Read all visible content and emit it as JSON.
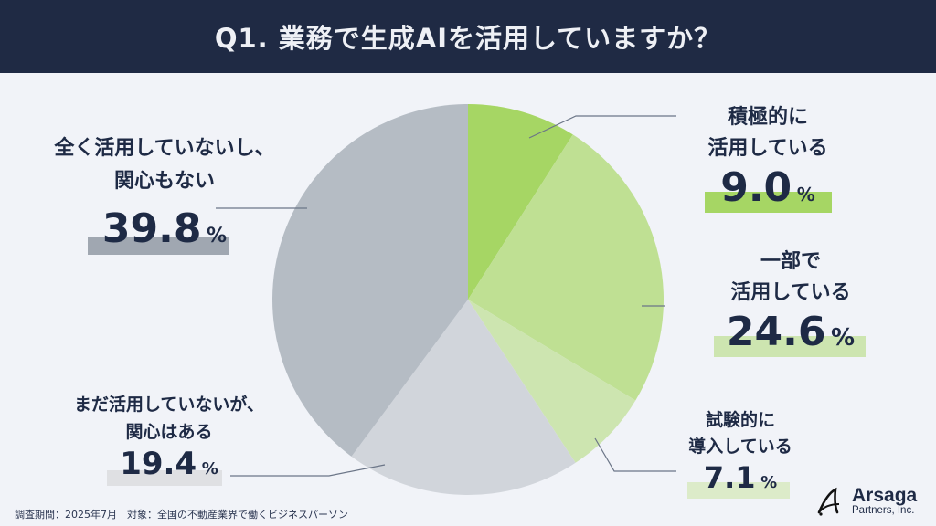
{
  "header": {
    "title": "Q1.  業務で生成AIを活用していますか？"
  },
  "chart_data": {
    "type": "pie",
    "title": "Q1. 業務で生成AIを活用していますか？",
    "start_angle": "12 o'clock, clockwise",
    "slices": [
      {
        "label": "積極的に活用している",
        "value": 9.0,
        "color": "#a6d664"
      },
      {
        "label": "一部で活用している",
        "value": 24.6,
        "color": "#bfe093"
      },
      {
        "label": "試験的に導入している",
        "value": 7.1,
        "color": "#cde5b0"
      },
      {
        "label": "まだ活用していないが、関心はある",
        "value": 19.4,
        "color": "#d1d5db"
      },
      {
        "label": "全く活用していないし、関心もない",
        "value": 39.8,
        "color": "#b5bcc4"
      }
    ],
    "unit": "%"
  },
  "labels": {
    "s1": {
      "line1": "積極的に",
      "line2": "活用している",
      "value": "9.0",
      "pct": "%",
      "bar_color": "#a6d664"
    },
    "s2": {
      "line1": "一部で",
      "line2": "活用している",
      "value": "24.6",
      "pct": "%",
      "bar_color": "#cde5b0"
    },
    "s3": {
      "line1": "試験的に",
      "line2": "導入している",
      "value": "7.1",
      "pct": "%",
      "bar_color": "#dcebc9"
    },
    "s4": {
      "line1": "まだ活用していないが、",
      "line2": "関心はある",
      "value": "19.4",
      "pct": "%",
      "bar_color": "#dfe0e3"
    },
    "s5": {
      "line1": "全く活用していないし、",
      "line2": "関心もない",
      "value": "39.8",
      "pct": "%",
      "bar_color": "#a0a7b1"
    }
  },
  "footer": {
    "text": "調査期間：2025年7月　対象：全国の不動産業界で働くビジネスパーソン"
  },
  "logo": {
    "name": "Arsaga",
    "sub": "Partners, Inc."
  }
}
